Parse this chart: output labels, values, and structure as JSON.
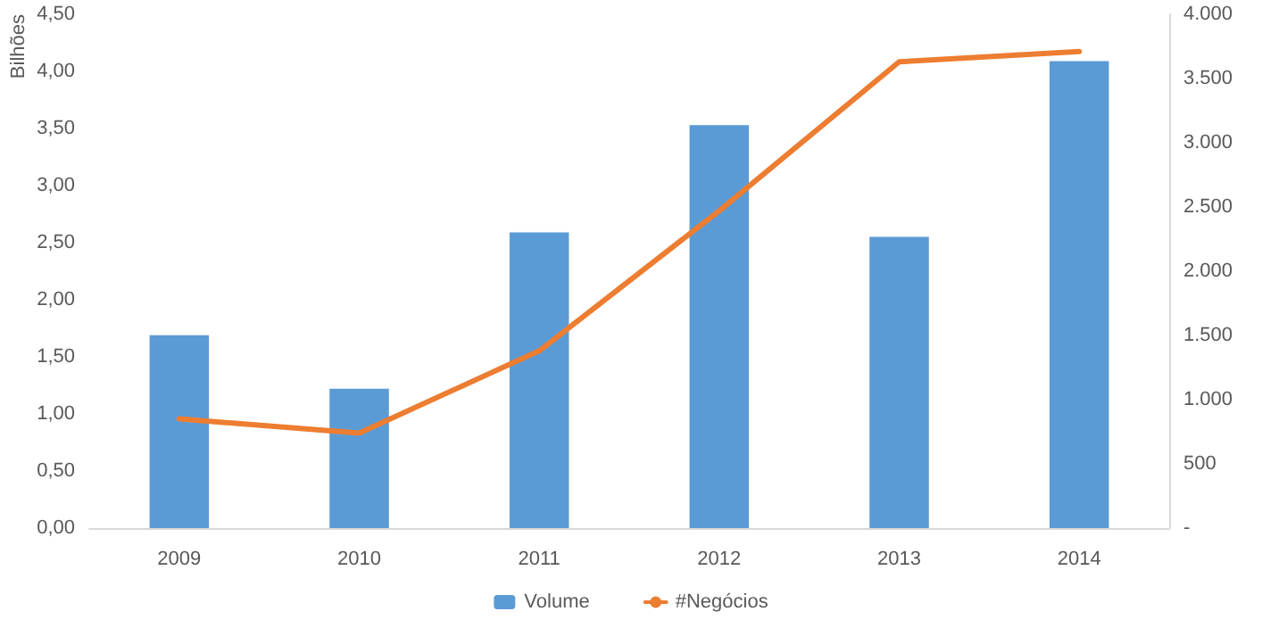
{
  "chart_data": {
    "type": "bar",
    "ylabel": "Bilhões",
    "categories": [
      "2009",
      "2010",
      "2011",
      "2012",
      "2013",
      "2014"
    ],
    "series": [
      {
        "name": "Volume",
        "color": "#5b9bd5",
        "values": [
          1.69,
          1.22,
          2.59,
          3.53,
          2.55,
          4.09
        ]
      },
      {
        "name": "#Negócios",
        "type": "line",
        "axis": "y2",
        "color": "#ed7d31",
        "values": [
          850,
          740,
          1380,
          2470,
          3630,
          3710
        ],
        "marker": "none"
      }
    ],
    "ylim": [
      0,
      4.5
    ],
    "yticks": [
      {
        "value": 0,
        "label": "0,00"
      },
      {
        "value": 0.5,
        "label": "0,50"
      },
      {
        "value": 1,
        "label": "1,00"
      },
      {
        "value": 1.5,
        "label": "1,50"
      },
      {
        "value": 2,
        "label": "2,00"
      },
      {
        "value": 2.5,
        "label": "2,50"
      },
      {
        "value": 3,
        "label": "3,00"
      },
      {
        "value": 3.5,
        "label": "3,50"
      },
      {
        "value": 4,
        "label": "4,00"
      },
      {
        "value": 4.5,
        "label": "4,50"
      }
    ],
    "y2lim": [
      0,
      4000
    ],
    "y2ticks": [
      {
        "value": 0,
        "label": "-"
      },
      500,
      {
        "value": 1000,
        "label": "1.000"
      },
      {
        "value": 1500,
        "label": "1.500"
      },
      {
        "value": 2000,
        "label": "2.000"
      },
      {
        "value": 2500,
        "label": "2.500"
      },
      {
        "value": 3000,
        "label": "3.000"
      },
      {
        "value": 3500,
        "label": "3.500"
      },
      {
        "value": 4000,
        "label": "4.000"
      }
    ],
    "grid": false,
    "legend": "bottom"
  }
}
